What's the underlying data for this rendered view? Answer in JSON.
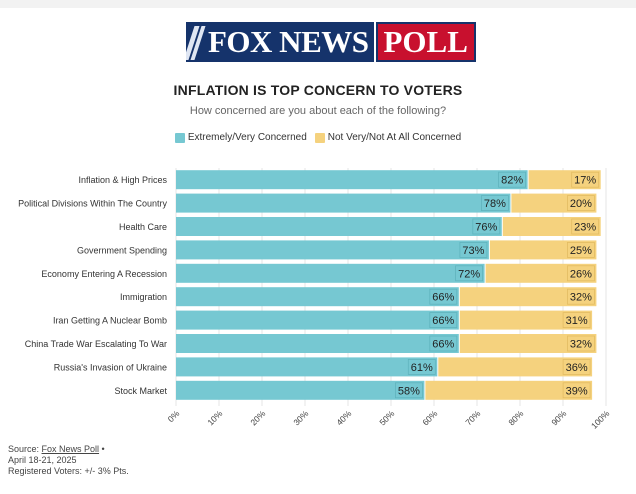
{
  "logo": {
    "fox": "FOX NEWS",
    "poll": "POLL"
  },
  "colors": {
    "concerned": "#76c8d2",
    "not_concerned": "#f5d27e",
    "logo_blue": "#15336b",
    "logo_red": "#c8102e"
  },
  "source": {
    "prefix": "Source: ",
    "link": "Fox News Poll",
    "suffix": " •",
    "dates": "April 18-21, 2025",
    "note": "Registered Voters: +/- 3% Pts."
  },
  "chart_data": {
    "type": "bar",
    "orientation": "horizontal",
    "stacked": true,
    "title": "INFLATION IS TOP CONCERN TO VOTERS",
    "subtitle": "How concerned are you about each of the following?",
    "categories": [
      "Inflation & High Prices",
      "Political Divisions Within The Country",
      "Health Care",
      "Government Spending",
      "Economy Entering A Recession",
      "Immigration",
      "Iran Getting A Nuclear Bomb",
      "China Trade War Escalating To War",
      "Russia's Invasion of Ukraine",
      "Stock Market"
    ],
    "series": [
      {
        "name": "Extremely/Very Concerned",
        "values": [
          82,
          78,
          76,
          73,
          72,
          66,
          66,
          66,
          61,
          58
        ]
      },
      {
        "name": "Not Very/Not At All Concerned",
        "values": [
          17,
          20,
          23,
          25,
          26,
          32,
          31,
          32,
          36,
          39
        ]
      }
    ],
    "xlim": [
      0,
      100
    ],
    "xticks": [
      "0%",
      "10%",
      "20%",
      "30%",
      "40%",
      "50%",
      "60%",
      "70%",
      "80%",
      "90%",
      "100%"
    ],
    "value_suffix": "%",
    "grid": true,
    "legend_position": "top"
  }
}
